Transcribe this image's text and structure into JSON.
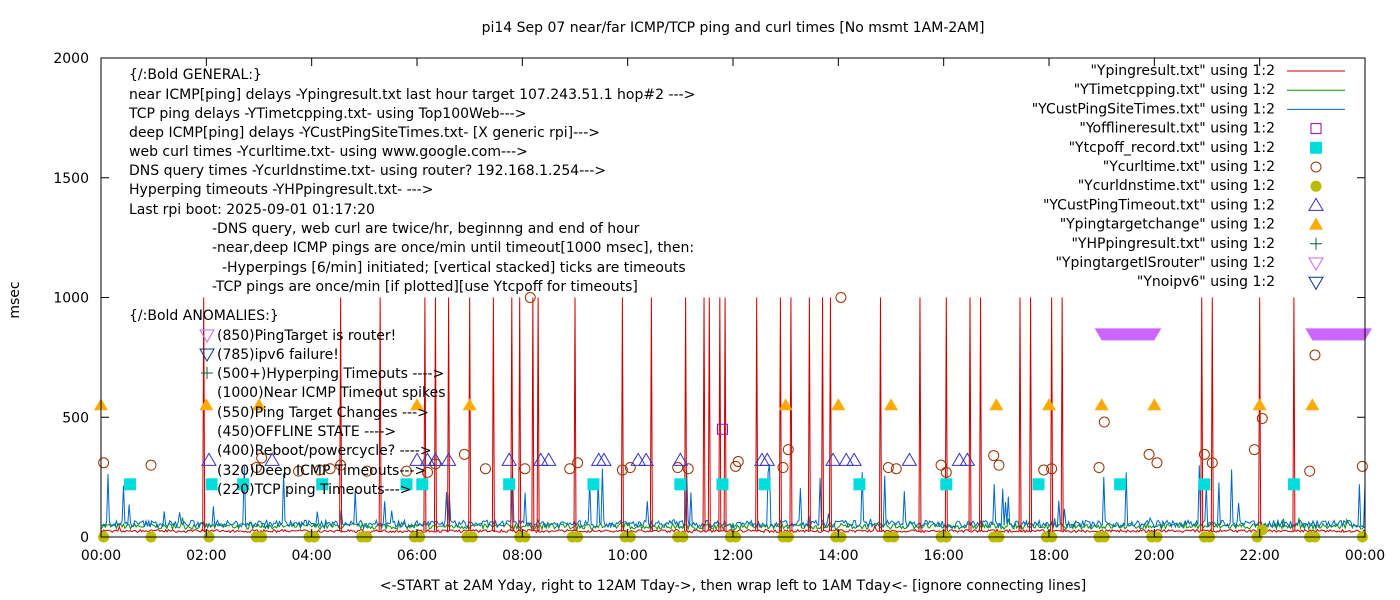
{
  "chart_data": {
    "type": "line",
    "title": "pi14 Sep 07  near/far ICMP/TCP ping and curl times [No msmt 1AM-2AM]",
    "ylabel": "msec",
    "xlabel": "<-START at 2AM Yday, right to 12AM Tday->, then wrap left to 1AM Tday<- [ignore connecting lines]",
    "xlim": [
      0,
      24
    ],
    "ylim": [
      0,
      2000
    ],
    "xticks": [
      "00:00",
      "02:00",
      "04:00",
      "06:00",
      "08:00",
      "10:00",
      "12:00",
      "14:00",
      "16:00",
      "18:00",
      "20:00",
      "22:00",
      "00:00"
    ],
    "yticks": [
      "0",
      "500",
      "1000",
      "1500",
      "2000"
    ],
    "grid": false,
    "legend_position": "top-right",
    "annotations": [
      "{/:Bold GENERAL:}",
      "near ICMP[ping] delays -Ypingresult.txt last hour target 107.243.51.1 hop#2 --->",
      "TCP ping delays -YTimetcpping.txt- using Top100Web--->",
      "deep ICMP[ping] delays -YCustPingSiteTimes.txt- [X generic rpi]--->",
      "web curl times -Ycurltime.txt- using www.google.com--->",
      "DNS query times -Ycurldnstime.txt- using router? 192.168.1.254--->",
      "Hyperping timeouts -YHPpingresult.txt- --->",
      "Last rpi boot: 2025-09-01 01:17:20",
      "-DNS query, web curl are twice/hr, beginnng and end of hour",
      "-near,deep ICMP pings are once/min until timeout[1000 msec], then:",
      "-Hyperpings [6/min] initiated; [vertical stacked] ticks are timeouts",
      "-TCP pings are once/min [if plotted][use Ytcpoff for timeouts]",
      "{/:Bold ANOMALIES:}",
      "(850)PingTarget is router!",
      "(785)ipv6 failure!",
      "(500+)Hyperping Timeouts ---->",
      "(1000)Near ICMP Timeout spikes",
      "(550)Ping Target Changes --->",
      "(450)OFFLINE STATE ---->",
      "(400)Reboot/powercycle? ---->",
      "(320)Deep ICMP Timeouts--->",
      "(220)TCP ping Timeouts--->"
    ],
    "series": [
      {
        "name": "\"Ypingresult.txt\" using 1:2",
        "style": "line",
        "color": "#cc0000",
        "baseline": 25,
        "spikes_x": [
          1.95,
          4.55,
          5.3,
          6.15,
          6.35,
          6.6,
          7.0,
          7.45,
          7.8,
          7.95,
          8.2,
          8.3,
          9.0,
          9.9,
          10.45,
          11.1,
          11.45,
          11.55,
          11.75,
          11.85,
          12.45,
          12.9,
          13.1,
          13.45,
          13.7,
          13.85,
          14.8,
          15.55,
          16.05,
          16.5,
          16.7,
          17.45,
          17.65,
          18.05,
          18.25,
          20.9,
          21.1,
          22.0,
          22.65
        ],
        "spike_value": 1000
      },
      {
        "name": "\"YTimetcpping.txt\" using 1:2",
        "style": "line",
        "color": "#009900",
        "baseline": 45
      },
      {
        "name": "\"YCustPingSiteTimes.txt\" using 1:2",
        "style": "line",
        "color": "#0066cc",
        "baseline": 55
      },
      {
        "name": "\"Yofflineresult.txt\" using 1:2",
        "style": "open-square",
        "color": "#9900cc",
        "points": [
          [
            11.8,
            450
          ]
        ]
      },
      {
        "name": "\"Ytcpoff_record.txt\" using 1:2",
        "style": "filled-square",
        "color": "#00dddd",
        "points": [
          [
            0.55,
            220
          ],
          [
            2.1,
            220
          ],
          [
            2.7,
            220
          ],
          [
            4.2,
            220
          ],
          [
            5.8,
            220
          ],
          [
            6.1,
            220
          ],
          [
            7.75,
            220
          ],
          [
            9.35,
            220
          ],
          [
            11.0,
            220
          ],
          [
            11.8,
            220
          ],
          [
            12.6,
            220
          ],
          [
            14.4,
            220
          ],
          [
            16.05,
            220
          ],
          [
            17.8,
            220
          ],
          [
            19.35,
            220
          ],
          [
            20.95,
            220
          ],
          [
            22.65,
            220
          ]
        ]
      },
      {
        "name": "\"Ycurltime.txt\" using 1:2",
        "style": "open-circle",
        "color": "#993300",
        "points": [
          [
            0.05,
            310
          ],
          [
            0.95,
            300
          ],
          [
            2.95,
            290
          ],
          [
            3.05,
            330
          ],
          [
            3.75,
            275
          ],
          [
            4.15,
            280
          ],
          [
            4.35,
            285
          ],
          [
            4.55,
            300
          ],
          [
            5.05,
            275
          ],
          [
            5.8,
            275
          ],
          [
            6.2,
            270
          ],
          [
            6.35,
            305
          ],
          [
            6.9,
            345
          ],
          [
            7.3,
            285
          ],
          [
            8.05,
            285
          ],
          [
            8.15,
            1000
          ],
          [
            8.9,
            285
          ],
          [
            9.05,
            310
          ],
          [
            9.9,
            280
          ],
          [
            10.05,
            290
          ],
          [
            10.95,
            290
          ],
          [
            11.15,
            285
          ],
          [
            12.05,
            295
          ],
          [
            12.1,
            315
          ],
          [
            12.95,
            290
          ],
          [
            13.05,
            365
          ],
          [
            14.05,
            1000
          ],
          [
            14.95,
            290
          ],
          [
            15.1,
            285
          ],
          [
            15.95,
            300
          ],
          [
            16.05,
            270
          ],
          [
            16.95,
            340
          ],
          [
            17.05,
            300
          ],
          [
            17.9,
            280
          ],
          [
            18.05,
            285
          ],
          [
            18.95,
            290
          ],
          [
            19.05,
            480
          ],
          [
            19.9,
            345
          ],
          [
            20.05,
            310
          ],
          [
            20.95,
            345
          ],
          [
            21.1,
            310
          ],
          [
            21.9,
            365
          ],
          [
            22.05,
            495
          ],
          [
            22.95,
            275
          ],
          [
            23.05,
            760
          ],
          [
            23.95,
            295
          ]
        ]
      },
      {
        "name": "\"Ycurldnstime.txt\" using 1:2",
        "style": "filled-circle",
        "color": "#bbbb00",
        "points": [
          [
            0.05,
            0
          ],
          [
            0.95,
            0
          ],
          [
            2.05,
            0
          ],
          [
            2.95,
            0
          ],
          [
            3.05,
            0
          ],
          [
            3.95,
            0
          ],
          [
            4.05,
            0
          ],
          [
            4.95,
            0
          ],
          [
            5.05,
            0
          ],
          [
            5.95,
            0
          ],
          [
            6.05,
            0
          ],
          [
            6.95,
            0
          ],
          [
            7.05,
            0
          ],
          [
            7.95,
            0
          ],
          [
            8.05,
            0
          ],
          [
            8.95,
            0
          ],
          [
            9.05,
            0
          ],
          [
            9.95,
            0
          ],
          [
            10.05,
            0
          ],
          [
            10.95,
            0
          ],
          [
            11.05,
            0
          ],
          [
            11.95,
            0
          ],
          [
            12.05,
            0
          ],
          [
            12.95,
            0
          ],
          [
            13.05,
            0
          ],
          [
            13.95,
            0
          ],
          [
            14.05,
            0
          ],
          [
            14.95,
            0
          ],
          [
            15.05,
            0
          ],
          [
            15.95,
            0
          ],
          [
            16.05,
            0
          ],
          [
            16.95,
            0
          ],
          [
            17.05,
            0
          ],
          [
            17.95,
            0
          ],
          [
            18.05,
            0
          ],
          [
            18.95,
            0
          ],
          [
            19.05,
            0
          ],
          [
            19.95,
            0
          ],
          [
            20.05,
            0
          ],
          [
            20.95,
            0
          ],
          [
            21.05,
            0
          ],
          [
            21.95,
            0
          ],
          [
            22.05,
            30
          ],
          [
            22.95,
            0
          ],
          [
            23.05,
            0
          ],
          [
            23.95,
            0
          ]
        ]
      },
      {
        "name": "\"YCustPingTimeout.txt\" using 1:2",
        "style": "open-triangle-up",
        "color": "#3333cc",
        "points": [
          [
            2.05,
            320
          ],
          [
            3.25,
            320
          ],
          [
            6.0,
            320
          ],
          [
            6.2,
            320
          ],
          [
            6.35,
            320
          ],
          [
            6.6,
            320
          ],
          [
            7.75,
            320
          ],
          [
            8.35,
            320
          ],
          [
            8.5,
            320
          ],
          [
            9.45,
            320
          ],
          [
            9.55,
            320
          ],
          [
            10.2,
            320
          ],
          [
            10.35,
            320
          ],
          [
            11.0,
            320
          ],
          [
            12.55,
            320
          ],
          [
            12.65,
            320
          ],
          [
            13.9,
            320
          ],
          [
            14.15,
            320
          ],
          [
            14.3,
            320
          ],
          [
            15.35,
            320
          ],
          [
            16.3,
            320
          ],
          [
            16.45,
            320
          ]
        ]
      },
      {
        "name": "\"Ypingtargetchange\" using 1:2",
        "style": "filled-triangle-up",
        "color": "#ffaa00",
        "points": [
          [
            0.0,
            550
          ],
          [
            2.0,
            550
          ],
          [
            3.0,
            550
          ],
          [
            6.0,
            550
          ],
          [
            7.0,
            550
          ],
          [
            13.0,
            550
          ],
          [
            14.0,
            550
          ],
          [
            15.0,
            550
          ],
          [
            17.0,
            550
          ],
          [
            18.0,
            550
          ],
          [
            19.0,
            550
          ],
          [
            20.0,
            550
          ],
          [
            22.0,
            550
          ],
          [
            23.0,
            550
          ]
        ]
      },
      {
        "name": "\"YHPpingresult.txt\" using 1:2",
        "style": "plus",
        "color": "#006633",
        "points": []
      },
      {
        "name": "\"YpingtargetISrouter\" using 1:2",
        "style": "open-triangle-down",
        "color": "#cc66ff",
        "points": [
          [
            19.0,
            850
          ],
          [
            19.2,
            850
          ],
          [
            19.4,
            850
          ],
          [
            19.6,
            850
          ],
          [
            19.8,
            850
          ],
          [
            20.0,
            850
          ],
          [
            23.0,
            850
          ],
          [
            23.2,
            850
          ],
          [
            23.4,
            850
          ],
          [
            23.6,
            850
          ],
          [
            23.8,
            850
          ],
          [
            24.0,
            850
          ]
        ]
      },
      {
        "name": "\"Ynoipv6\" using 1:2",
        "style": "open-triangle-down",
        "color": "#003399",
        "points": []
      }
    ]
  }
}
